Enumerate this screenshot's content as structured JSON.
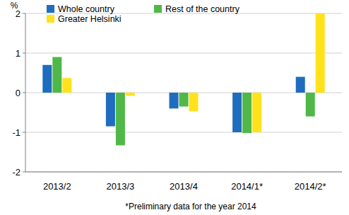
{
  "chart_data": {
    "type": "bar",
    "y_label": "%",
    "annotations": [
      "*Preliminary data for the year 2014"
    ],
    "categories": [
      "2013/2",
      "2013/3",
      "2013/4",
      "2014/1*",
      "2014/2*"
    ],
    "series": [
      {
        "name": "Whole country",
        "color": "#1f6dbf",
        "values": [
          0.7,
          -0.85,
          -0.4,
          -1.0,
          0.4
        ]
      },
      {
        "name": "Rest of the country",
        "color": "#4fb848",
        "values": [
          0.9,
          -1.33,
          -0.35,
          -1.02,
          -0.6
        ]
      },
      {
        "name": "Greater Helsinki",
        "color": "#ffe21c",
        "values": [
          0.37,
          -0.08,
          -0.47,
          -1.0,
          2.0
        ]
      }
    ],
    "ylim": [
      -2,
      2
    ],
    "yticks": [
      -2,
      -1,
      0,
      1,
      2
    ],
    "grid": true,
    "legend": "top-left"
  }
}
